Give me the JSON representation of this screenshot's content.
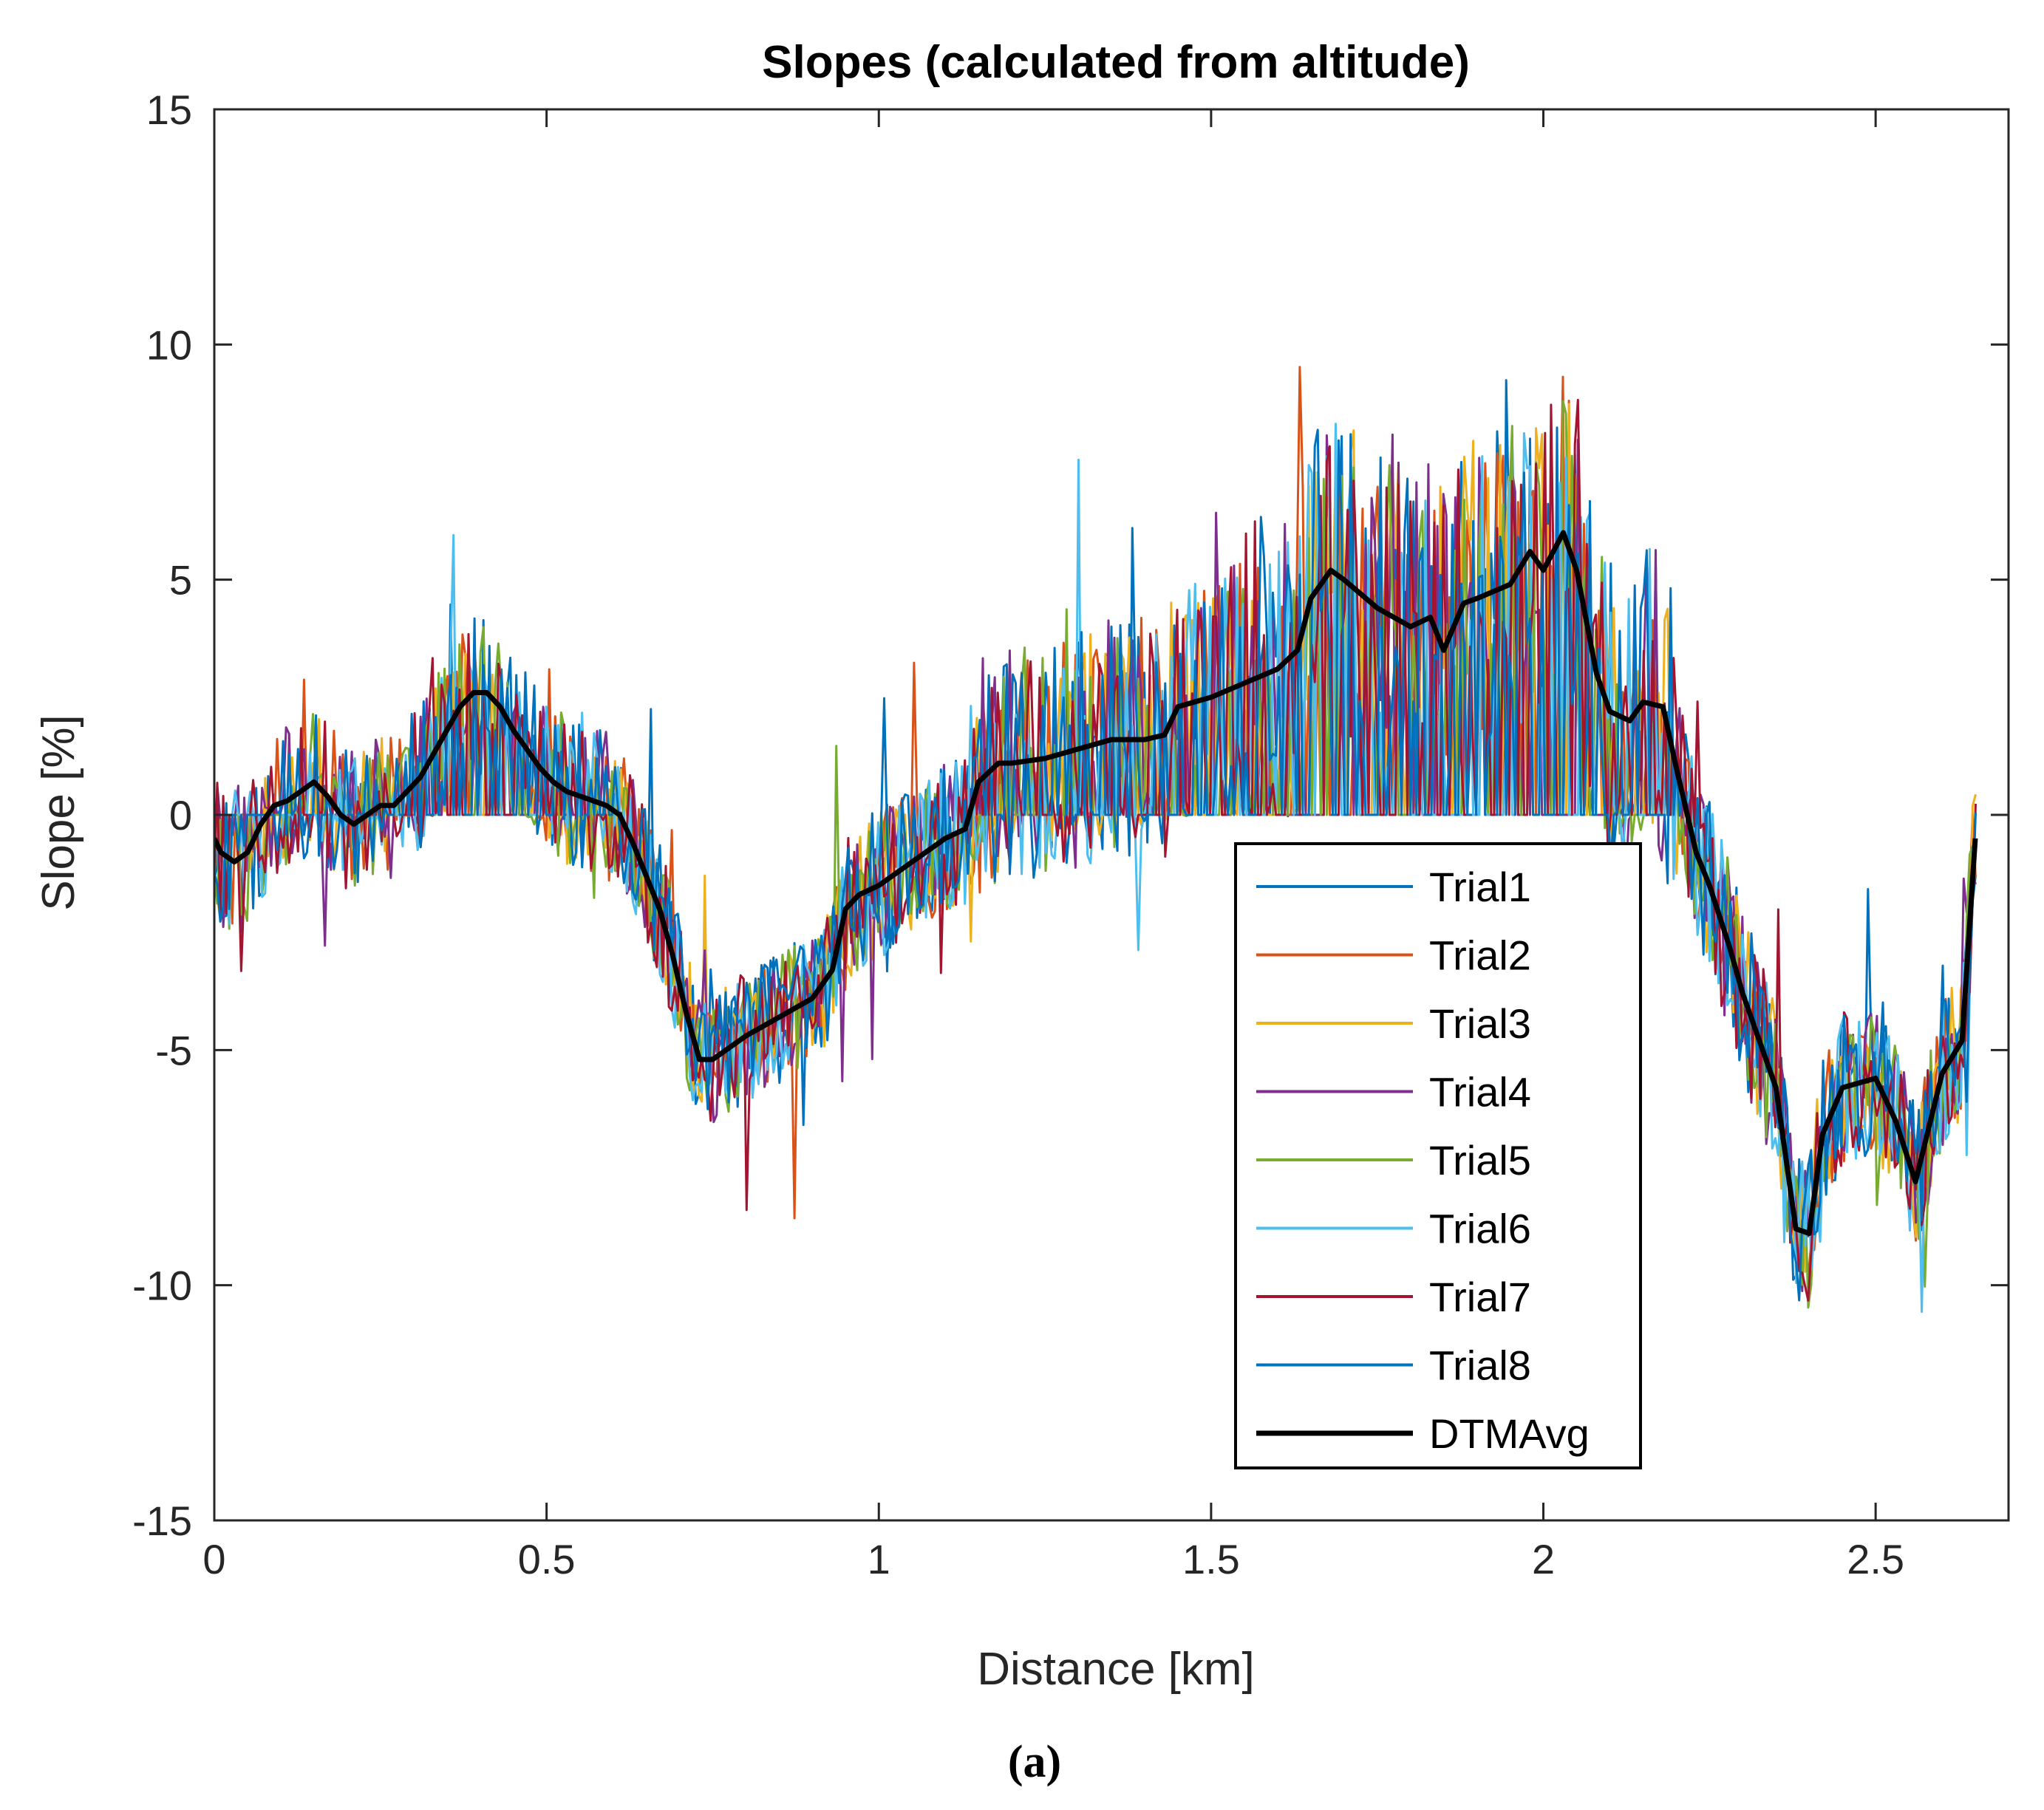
{
  "chart_data": {
    "type": "line",
    "title": "Slopes (calculated from altitude)",
    "xlabel": "Distance [km]",
    "ylabel": "Slope [%]",
    "xlim": [
      0,
      2.7
    ],
    "ylim": [
      -15,
      15
    ],
    "xticks": [
      0,
      0.5,
      1,
      1.5,
      2,
      2.5
    ],
    "xtick_labels": [
      "0",
      "0.5",
      "1",
      "1.5",
      "2",
      "2.5"
    ],
    "yticks": [
      -15,
      -10,
      -5,
      0,
      5,
      10,
      15
    ],
    "ytick_labels": [
      "-15",
      "-10",
      "-5",
      "0",
      "5",
      "10",
      "15"
    ],
    "legend_position": "lower-right",
    "caption": "(a)",
    "series": [
      {
        "name": "Trial1",
        "color": "#0072BD",
        "width": 3,
        "seed": 11
      },
      {
        "name": "Trial2",
        "color": "#D95319",
        "width": 3,
        "seed": 23
      },
      {
        "name": "Trial3",
        "color": "#EDB120",
        "width": 3,
        "seed": 37
      },
      {
        "name": "Trial4",
        "color": "#7E2F8E",
        "width": 3,
        "seed": 41
      },
      {
        "name": "Trial5",
        "color": "#77AC30",
        "width": 3,
        "seed": 53
      },
      {
        "name": "Trial6",
        "color": "#4DBEEE",
        "width": 3,
        "seed": 67
      },
      {
        "name": "Trial7",
        "color": "#A2142F",
        "width": 3,
        "seed": 79
      },
      {
        "name": "Trial8",
        "color": "#0072BD",
        "width": 3,
        "seed": 97
      },
      {
        "name": "DTMAvg",
        "color": "#000000",
        "width": 7,
        "x": [
          0.0,
          0.01,
          0.03,
          0.05,
          0.07,
          0.09,
          0.11,
          0.13,
          0.15,
          0.17,
          0.19,
          0.21,
          0.23,
          0.25,
          0.27,
          0.29,
          0.31,
          0.33,
          0.35,
          0.37,
          0.39,
          0.41,
          0.43,
          0.45,
          0.47,
          0.49,
          0.51,
          0.53,
          0.55,
          0.57,
          0.59,
          0.61,
          0.63,
          0.65,
          0.67,
          0.69,
          0.71,
          0.73,
          0.75,
          0.77,
          0.8,
          0.85,
          0.9,
          0.93,
          0.95,
          0.97,
          1.0,
          1.05,
          1.08,
          1.1,
          1.13,
          1.15,
          1.18,
          1.2,
          1.25,
          1.3,
          1.35,
          1.4,
          1.43,
          1.45,
          1.5,
          1.55,
          1.6,
          1.63,
          1.65,
          1.68,
          1.7,
          1.75,
          1.8,
          1.83,
          1.85,
          1.88,
          1.9,
          1.95,
          1.98,
          2.0,
          2.03,
          2.05,
          2.08,
          2.1,
          2.13,
          2.15,
          2.18,
          2.2,
          2.23,
          2.25,
          2.28,
          2.3,
          2.33,
          2.35,
          2.38,
          2.4,
          2.42,
          2.45,
          2.5,
          2.53,
          2.56,
          2.6,
          2.63,
          2.65
        ],
        "y": [
          -0.5,
          -0.8,
          -1.0,
          -0.8,
          -0.2,
          0.2,
          0.3,
          0.5,
          0.7,
          0.4,
          0.0,
          -0.2,
          0.0,
          0.2,
          0.2,
          0.5,
          0.8,
          1.3,
          1.8,
          2.3,
          2.6,
          2.6,
          2.3,
          1.8,
          1.4,
          1.0,
          0.7,
          0.5,
          0.4,
          0.3,
          0.2,
          0.0,
          -0.6,
          -1.3,
          -2.0,
          -3.0,
          -4.2,
          -5.2,
          -5.2,
          -5.0,
          -4.7,
          -4.3,
          -3.9,
          -3.3,
          -2.0,
          -1.7,
          -1.5,
          -1.0,
          -0.7,
          -0.5,
          -0.3,
          0.7,
          1.1,
          1.1,
          1.2,
          1.4,
          1.6,
          1.6,
          1.7,
          2.3,
          2.5,
          2.8,
          3.1,
          3.5,
          4.6,
          5.2,
          5.0,
          4.4,
          4.0,
          4.2,
          3.5,
          4.5,
          4.6,
          4.9,
          5.6,
          5.2,
          6.0,
          5.2,
          3.0,
          2.2,
          2.0,
          2.4,
          2.3,
          1.0,
          -0.8,
          -1.5,
          -2.8,
          -3.8,
          -5.0,
          -5.8,
          -8.8,
          -8.9,
          -6.8,
          -5.8,
          -5.6,
          -6.5,
          -7.8,
          -5.5,
          -4.8,
          -0.5
        ]
      }
    ]
  }
}
